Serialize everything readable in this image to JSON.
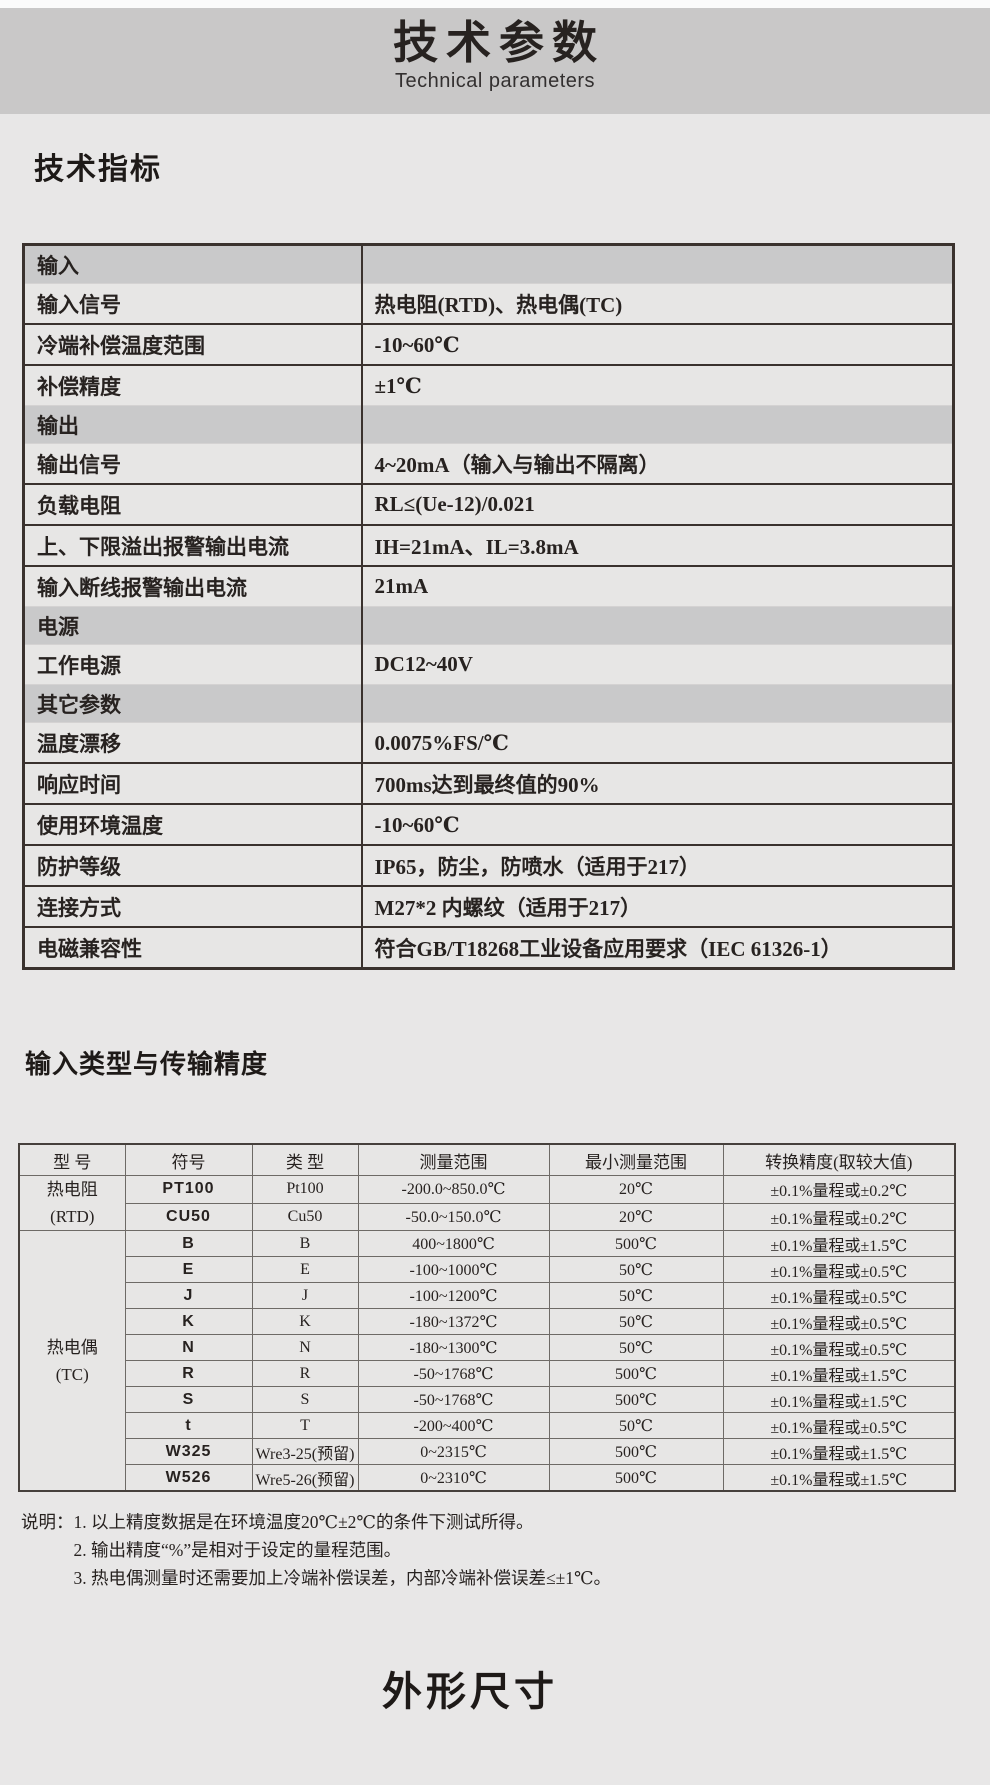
{
  "colors": {
    "banner_bg": "#c9c8c8",
    "page_bg": "#e8e7e7",
    "section_row_bg": "#c9c9ca",
    "border_dark": "#3a322e",
    "text": "#272220"
  },
  "banner": {
    "title": "技术参数",
    "subtitle": "Technical parameters"
  },
  "sections": {
    "spec_heading": "技术指标",
    "accuracy_heading": "输入类型与传输精度",
    "dimensions_heading": "外形尺寸"
  },
  "spec_table": {
    "rows": [
      {
        "type": "section",
        "label": "输入",
        "value": ""
      },
      {
        "type": "value",
        "label": "输入信号",
        "value": "热电阻(RTD)、热电偶(TC)"
      },
      {
        "type": "value",
        "label": "冷端补偿温度范围",
        "value": "-10~60℃"
      },
      {
        "type": "value",
        "label": "补偿精度",
        "value": "±1℃"
      },
      {
        "type": "section",
        "label": "输出",
        "value": ""
      },
      {
        "type": "value",
        "label": "输出信号",
        "value": "4~20mA（输入与输出不隔离）"
      },
      {
        "type": "value",
        "label": "负载电阻",
        "value": "RL≤(Ue-12)/0.021"
      },
      {
        "type": "value",
        "label": "上、下限溢出报警输出电流",
        "value": "IH=21mA、IL=3.8mA"
      },
      {
        "type": "value",
        "label": "输入断线报警输出电流",
        "value": "21mA"
      },
      {
        "type": "section",
        "label": "电源",
        "value": ""
      },
      {
        "type": "value",
        "label": "工作电源",
        "value": "DC12~40V"
      },
      {
        "type": "section",
        "label": "其它参数",
        "value": ""
      },
      {
        "type": "value",
        "label": "温度漂移",
        "value": "0.0075%FS/℃"
      },
      {
        "type": "value",
        "label": "响应时间",
        "value": "700ms达到最终值的90%"
      },
      {
        "type": "value",
        "label": "使用环境温度",
        "value": "-10~60℃"
      },
      {
        "type": "value",
        "label": "防护等级",
        "value": "IP65，防尘，防喷水（适用于217）"
      },
      {
        "type": "value",
        "label": "连接方式",
        "value": "M27*2 内螺纹（适用于217）"
      },
      {
        "type": "value",
        "label": "电磁兼容性",
        "value": "符合GB/T18268工业设备应用要求（IEC 61326-1）"
      }
    ]
  },
  "accuracy_table": {
    "headers": [
      "型 号",
      "符号",
      "类 型",
      "测量范围",
      "最小测量范围",
      "转换精度(取较大值)"
    ],
    "groups": [
      {
        "model": "热电阻",
        "model_sub": "(RTD)",
        "rows": [
          {
            "symbol": "PT100",
            "sensor_class": "Pt100",
            "range": "-200.0~850.0℃",
            "min_range": "20℃",
            "accuracy": "±0.1%量程或±0.2℃"
          },
          {
            "symbol": "CU50",
            "sensor_class": "Cu50",
            "range": "-50.0~150.0℃",
            "min_range": "20℃",
            "accuracy": "±0.1%量程或±0.2℃"
          }
        ]
      },
      {
        "model": "热电偶",
        "model_sub": "(TC)",
        "rows": [
          {
            "symbol": "B",
            "sensor_class": "B",
            "range": "400~1800℃",
            "min_range": "500℃",
            "accuracy": "±0.1%量程或±1.5℃"
          },
          {
            "symbol": "E",
            "sensor_class": "E",
            "range": "-100~1000℃",
            "min_range": "50℃",
            "accuracy": "±0.1%量程或±0.5℃"
          },
          {
            "symbol": "J",
            "sensor_class": "J",
            "range": "-100~1200℃",
            "min_range": "50℃",
            "accuracy": "±0.1%量程或±0.5℃"
          },
          {
            "symbol": "K",
            "sensor_class": "K",
            "range": "-180~1372℃",
            "min_range": "50℃",
            "accuracy": "±0.1%量程或±0.5℃"
          },
          {
            "symbol": "N",
            "sensor_class": "N",
            "range": "-180~1300℃",
            "min_range": "50℃",
            "accuracy": "±0.1%量程或±0.5℃"
          },
          {
            "symbol": "R",
            "sensor_class": "R",
            "range": "-50~1768℃",
            "min_range": "500℃",
            "accuracy": "±0.1%量程或±1.5℃"
          },
          {
            "symbol": "S",
            "sensor_class": "S",
            "range": "-50~1768℃",
            "min_range": "500℃",
            "accuracy": "±0.1%量程或±1.5℃"
          },
          {
            "symbol": "t",
            "sensor_class": "T",
            "range": "-200~400℃",
            "min_range": "50℃",
            "accuracy": "±0.1%量程或±0.5℃"
          },
          {
            "symbol": "W325",
            "sensor_class": "Wre3-25(预留)",
            "range": "0~2315℃",
            "min_range": "500℃",
            "accuracy": "±0.1%量程或±1.5℃"
          },
          {
            "symbol": "W526",
            "sensor_class": "Wre5-26(预留)",
            "range": "0~2310℃",
            "min_range": "500℃",
            "accuracy": "±0.1%量程或±1.5℃"
          }
        ]
      }
    ]
  },
  "notes": {
    "prefix": "说明：",
    "items": [
      "1. 以上精度数据是在环境温度20℃±2℃的条件下测试所得。",
      "2. 输出精度“%”是相对于设定的量程范围。",
      "3. 热电偶测量时还需要加上冷端补偿误差，内部冷端补偿误差≤±1℃。"
    ]
  }
}
